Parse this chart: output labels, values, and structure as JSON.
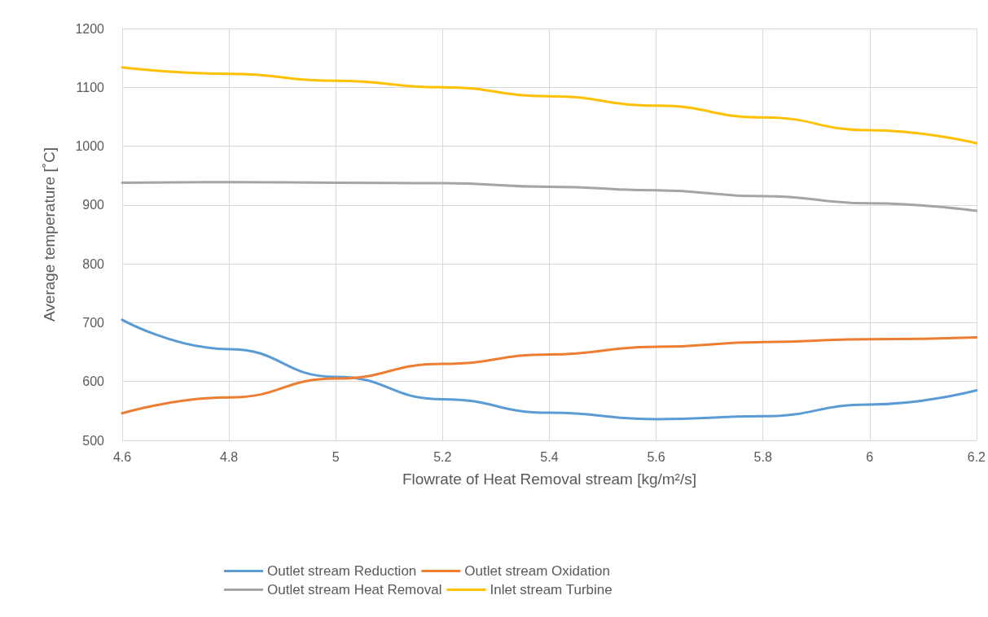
{
  "chart_data": {
    "type": "line",
    "xlabel": "Flowrate of Heat Removal stream [kg/m²/s]",
    "ylabel": "Average temperature [˚C]",
    "x": [
      4.6,
      4.8,
      5.0,
      5.2,
      5.4,
      5.6,
      5.8,
      6.0,
      6.2
    ],
    "series": [
      {
        "name": "Outlet stream Reduction",
        "color": "#5b9bd5",
        "values": [
          705,
          655,
          608,
          570,
          547,
          536,
          541,
          561,
          585
        ]
      },
      {
        "name": "Outlet stream Oxidation",
        "color": "#ed7d31",
        "values": [
          546,
          573,
          605,
          630,
          646,
          659,
          667,
          672,
          675
        ]
      },
      {
        "name": "Outlet stream Heat Removal",
        "color": "#a5a5a5",
        "values": [
          938,
          939,
          938,
          937,
          931,
          925,
          915,
          903,
          890
        ]
      },
      {
        "name": "Inlet stream Turbine",
        "color": "#ffc000",
        "values": [
          1134,
          1123,
          1111,
          1100,
          1085,
          1069,
          1049,
          1027,
          1005
        ]
      }
    ],
    "xlim": [
      4.6,
      6.2
    ],
    "xticks": [
      4.6,
      4.8,
      5,
      5.2,
      5.4,
      5.6,
      5.8,
      6,
      6.2
    ],
    "ylim": [
      500,
      1200
    ],
    "yticks": [
      500,
      600,
      700,
      800,
      900,
      1000,
      1100,
      1200
    ],
    "grid": true,
    "legend": "bottom",
    "marker": "none",
    "line_style": "solid"
  }
}
